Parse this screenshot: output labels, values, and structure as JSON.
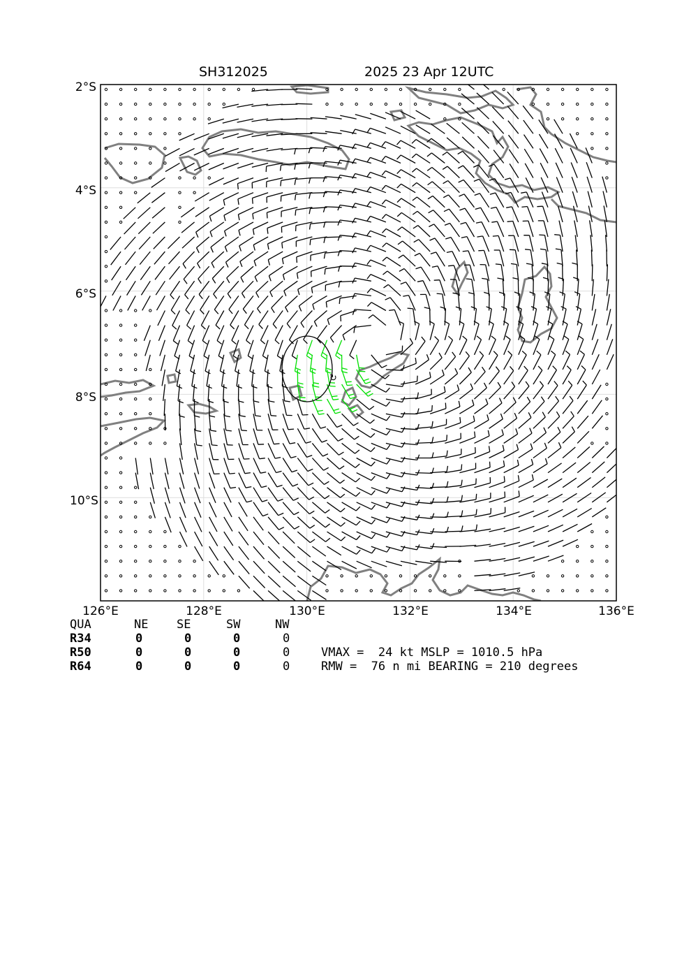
{
  "header": {
    "storm_id": "SH312025",
    "date_time": "2025 23 Apr 12UTC"
  },
  "map": {
    "lon_range": [
      126,
      136
    ],
    "lat_range": [
      -12,
      -2
    ],
    "lat_ticks": [
      "2°S",
      "4°S",
      "6°S",
      "8°S",
      "10°S"
    ],
    "lon_ticks": [
      "126°E",
      "128°E",
      "130°E",
      "132°E",
      "134°E",
      "136°E"
    ],
    "grid": true,
    "storm_center": [
      130.4,
      -7.6
    ],
    "circulation_center": [
      131.4,
      -7.0
    ],
    "coast_color": "#808080",
    "barb_color": "#000000",
    "strong_barb_color": "#00e000",
    "icons": [
      "wind-barb-icon",
      "calm-circle-icon",
      "storm-center-icon"
    ]
  },
  "radii_table": {
    "headers": [
      "QUA",
      "NE",
      "SE",
      "SW",
      "NW"
    ],
    "rows": [
      {
        "label": "R34",
        "values": [
          "0",
          "0",
          "0",
          "0"
        ]
      },
      {
        "label": "R50",
        "values": [
          "0",
          "0",
          "0",
          "0"
        ]
      },
      {
        "label": "R64",
        "values": [
          "0",
          "0",
          "0",
          "0"
        ]
      }
    ]
  },
  "info": {
    "line1": "VMAX =  24 kt MSLP = 1010.5 hPa",
    "line2": "RMW =  76 n mi BEARING = 210 degrees"
  }
}
